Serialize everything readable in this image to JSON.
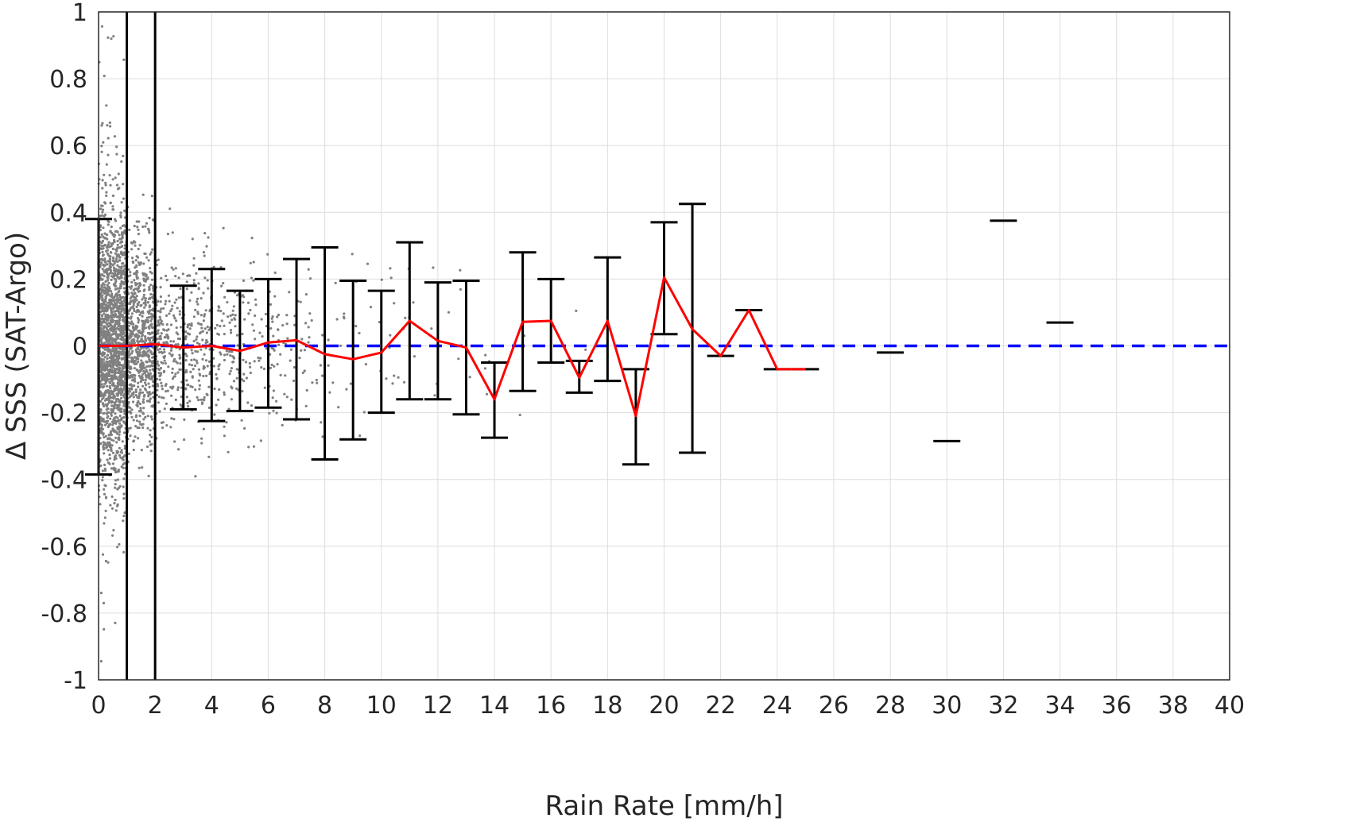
{
  "chart_data": {
    "type": "scatter",
    "xlabel": "Rain Rate [mm/h]",
    "ylabel": "Δ SSS (SAT-Argo)",
    "xlim": [
      0,
      40
    ],
    "ylim": [
      -1,
      1
    ],
    "xticks": [
      "0",
      "2",
      "4",
      "6",
      "8",
      "10",
      "12",
      "14",
      "16",
      "18",
      "20",
      "22",
      "24",
      "26",
      "28",
      "30",
      "32",
      "34",
      "36",
      "38",
      "40"
    ],
    "yticks": [
      "1",
      "0.8",
      "0.6",
      "0.4",
      "0.2",
      "0",
      "-0.2",
      "-0.4",
      "-0.6",
      "-0.8",
      "-1"
    ],
    "grid": true,
    "vertical_lines_x": [
      1,
      2
    ],
    "reference_line": {
      "y": 0,
      "style": "dashed",
      "color": "#0000ff"
    },
    "colors": {
      "scatter": "#808080",
      "mean_line": "#ff0000",
      "error_bars": "#000000",
      "reference": "#0000ff",
      "grid": "#dddddd"
    },
    "scatter_note": "dense cloud of individual matchups, concentrated at low rain rates",
    "bins": [
      {
        "x": 0,
        "mean": 0.0,
        "low": -0.385,
        "high": 0.38
      },
      {
        "x": 1,
        "mean": 0.0,
        "low": null,
        "high": null
      },
      {
        "x": 2,
        "mean": 0.005,
        "low": null,
        "high": null
      },
      {
        "x": 3,
        "mean": -0.005,
        "low": -0.19,
        "high": 0.18
      },
      {
        "x": 4,
        "mean": 0.0,
        "low": -0.225,
        "high": 0.23
      },
      {
        "x": 5,
        "mean": -0.015,
        "low": -0.195,
        "high": 0.165
      },
      {
        "x": 6,
        "mean": 0.01,
        "low": -0.185,
        "high": 0.2
      },
      {
        "x": 7,
        "mean": 0.017,
        "low": -0.22,
        "high": 0.26
      },
      {
        "x": 8,
        "mean": -0.025,
        "low": -0.34,
        "high": 0.295
      },
      {
        "x": 9,
        "mean": -0.04,
        "low": -0.28,
        "high": 0.195
      },
      {
        "x": 10,
        "mean": -0.02,
        "low": -0.2,
        "high": 0.165
      },
      {
        "x": 11,
        "mean": 0.075,
        "low": -0.16,
        "high": 0.31
      },
      {
        "x": 12,
        "mean": 0.015,
        "low": -0.16,
        "high": 0.19
      },
      {
        "x": 13,
        "mean": -0.005,
        "low": -0.205,
        "high": 0.195
      },
      {
        "x": 14,
        "mean": -0.16,
        "low": -0.275,
        "high": -0.05
      },
      {
        "x": 15,
        "mean": 0.072,
        "low": -0.135,
        "high": 0.28
      },
      {
        "x": 16,
        "mean": 0.075,
        "low": -0.05,
        "high": 0.2
      },
      {
        "x": 17,
        "mean": -0.095,
        "low": -0.14,
        "high": -0.045
      },
      {
        "x": 18,
        "mean": 0.075,
        "low": -0.105,
        "high": 0.265
      },
      {
        "x": 19,
        "mean": -0.21,
        "low": -0.355,
        "high": -0.07
      },
      {
        "x": 20,
        "mean": 0.205,
        "low": 0.035,
        "high": 0.37
      },
      {
        "x": 21,
        "mean": 0.05,
        "low": -0.32,
        "high": 0.425
      },
      {
        "x": 22,
        "mean": -0.03,
        "low": -0.03,
        "high": -0.03
      },
      {
        "x": 23,
        "mean": 0.107,
        "low": 0.107,
        "high": 0.107
      },
      {
        "x": 24,
        "mean": -0.07,
        "low": -0.07,
        "high": -0.07
      },
      {
        "x": 25,
        "mean": -0.07,
        "low": -0.07,
        "high": -0.07
      }
    ],
    "isolated_markers": [
      {
        "x": 28,
        "y": -0.02
      },
      {
        "x": 30,
        "y": -0.285
      },
      {
        "x": 32,
        "y": 0.375
      },
      {
        "x": 34,
        "y": 0.07
      }
    ]
  }
}
